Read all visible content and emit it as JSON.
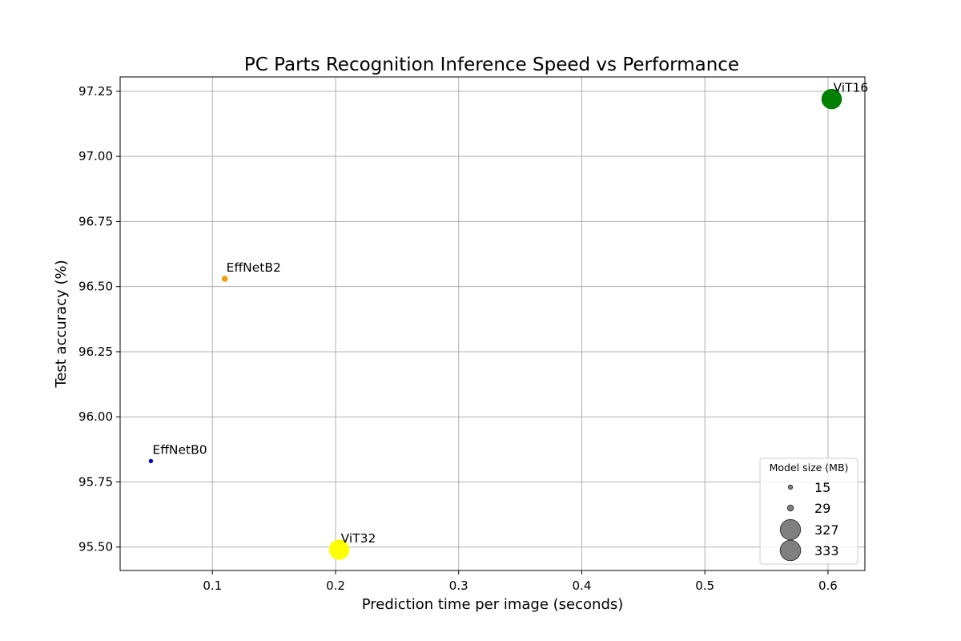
{
  "chart_data": {
    "type": "scatter",
    "title": "PC Parts Recognition Inference Speed vs Performance",
    "xlabel": "Prediction time per image (seconds)",
    "ylabel": "Test accuracy (%)",
    "xlim": [
      0.025,
      0.63
    ],
    "ylim": [
      95.41,
      97.305
    ],
    "xticks": [
      0.1,
      0.2,
      0.3,
      0.4,
      0.5,
      0.6
    ],
    "xtick_labels": [
      "0.1",
      "0.2",
      "0.3",
      "0.4",
      "0.5",
      "0.6"
    ],
    "yticks": [
      95.5,
      95.75,
      96.0,
      96.25,
      96.5,
      96.75,
      97.0,
      97.25
    ],
    "ytick_labels": [
      "95.50",
      "95.75",
      "96.00",
      "96.25",
      "96.50",
      "96.75",
      "97.00",
      "97.25"
    ],
    "grid": true,
    "points": [
      {
        "label": "EffNetB0",
        "x": 0.05,
        "y": 95.83,
        "size_mb": 15,
        "color": "#0000cc"
      },
      {
        "label": "EffNetB2",
        "x": 0.11,
        "y": 96.53,
        "size_mb": 29,
        "color": "#f59b0c"
      },
      {
        "label": "ViT32",
        "x": 0.203,
        "y": 95.49,
        "size_mb": 327,
        "color": "#ffff00"
      },
      {
        "label": "ViT16",
        "x": 0.603,
        "y": 97.22,
        "size_mb": 333,
        "color": "#008000"
      }
    ],
    "legend": {
      "title": "Model size (MB)",
      "placement": "lower-right",
      "marker_color": "#808080",
      "entries": [
        {
          "label": "15",
          "size_mb": 15
        },
        {
          "label": "29",
          "size_mb": 29
        },
        {
          "label": "327",
          "size_mb": 327
        },
        {
          "label": "333",
          "size_mb": 333
        }
      ]
    }
  }
}
